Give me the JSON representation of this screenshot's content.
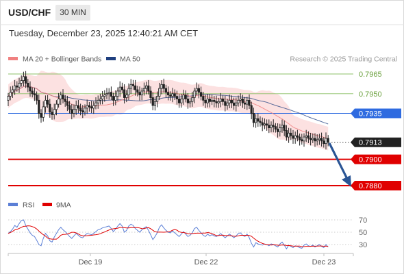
{
  "header": {
    "symbol": "USD/CHF",
    "timeframe": "30 MIN",
    "datetime": "Tuesday, December 23, 2025 12:40:21 AM CET"
  },
  "legend": {
    "ma20_label": "MA 20 + Bollinger Bands",
    "ma50_label": "MA 50",
    "credit": "Research © 2025 Trading Central",
    "rsi_label": "RSI",
    "rsi_ma_label": "9MA"
  },
  "colors": {
    "candle": "#222222",
    "bollinger_fill": "#fbdcdc",
    "ma20": "#f08080",
    "ma50": "#1f3f7f",
    "resistance": "#8cc068",
    "pivot": "#2f6be0",
    "support": "#e00000",
    "current_tag": "#222222",
    "arrow": "#2a5595",
    "rsi": "#5b7fd6",
    "rsi_ma": "#e00000"
  },
  "chart_data": [
    {
      "type": "candlestick",
      "title": "USD/CHF 30 MIN",
      "x_ticks": [
        "Dec 19",
        "Dec 22",
        "Dec 23"
      ],
      "ylim": [
        0.7874,
        0.7972
      ],
      "price_levels": [
        {
          "value": 0.7965,
          "label": "0.7965",
          "kind": "resistance"
        },
        {
          "value": 0.795,
          "label": "0.7950",
          "kind": "resistance"
        },
        {
          "value": 0.7935,
          "label": "0.7935",
          "kind": "pivot"
        },
        {
          "value": 0.7913,
          "label": "0.7913",
          "kind": "current"
        },
        {
          "value": 0.79,
          "label": "0.7900",
          "kind": "support"
        },
        {
          "value": 0.788,
          "label": "0.7880",
          "kind": "support"
        }
      ],
      "close": [
        0.7948,
        0.7951,
        0.7953,
        0.7956,
        0.7955,
        0.7958,
        0.796,
        0.7963,
        0.7958,
        0.7955,
        0.7952,
        0.795,
        0.7949,
        0.7945,
        0.7935,
        0.7932,
        0.794,
        0.7945,
        0.7942,
        0.7936,
        0.7934,
        0.7938,
        0.7942,
        0.7946,
        0.7949,
        0.7946,
        0.7944,
        0.7941,
        0.7938,
        0.7935,
        0.7938,
        0.7941,
        0.7939,
        0.7937,
        0.7936,
        0.7939,
        0.7941,
        0.794,
        0.7939,
        0.7941,
        0.7943,
        0.7945,
        0.7946,
        0.7948,
        0.7949,
        0.795,
        0.7951,
        0.7948,
        0.7945,
        0.7948,
        0.7952,
        0.7955,
        0.7953,
        0.7947,
        0.7949,
        0.7954,
        0.7957,
        0.7956,
        0.7953,
        0.7951,
        0.7949,
        0.7952,
        0.7954,
        0.7956,
        0.7952,
        0.7947,
        0.7941,
        0.7944,
        0.7948,
        0.7954,
        0.7957,
        0.7954,
        0.7951,
        0.7949,
        0.7948,
        0.795,
        0.7948,
        0.7946,
        0.7943,
        0.7946,
        0.7949,
        0.7946,
        0.7943,
        0.7944,
        0.7947,
        0.7952,
        0.7954,
        0.7951,
        0.7948,
        0.7945,
        0.7943,
        0.7946,
        0.7944,
        0.7945,
        0.7944,
        0.7943,
        0.7944,
        0.7946,
        0.7944,
        0.7941,
        0.7943,
        0.7945,
        0.7943,
        0.7941,
        0.7943,
        0.7945,
        0.7946,
        0.7943,
        0.7942,
        0.7945,
        0.7941,
        0.7935,
        0.7928,
        0.7931,
        0.7929,
        0.7928,
        0.7926,
        0.7927,
        0.7926,
        0.7924,
        0.7926,
        0.7925,
        0.7923,
        0.7921,
        0.7924,
        0.7926,
        0.7922,
        0.7917,
        0.792,
        0.7918,
        0.7916,
        0.7918,
        0.7917,
        0.7915,
        0.7914,
        0.7917,
        0.7918,
        0.7916,
        0.7915,
        0.7916,
        0.7914,
        0.7915,
        0.7916,
        0.7914,
        0.7912,
        0.7916,
        0.7913
      ]
    },
    {
      "type": "line",
      "title": "RSI",
      "ylim": [
        20,
        80
      ],
      "y_ticks": [
        70,
        50,
        30
      ],
      "series": [
        {
          "name": "RSI",
          "values": [
            48,
            51,
            55,
            61,
            58,
            64,
            69,
            70,
            61,
            55,
            49,
            45,
            43,
            37,
            30,
            28,
            40,
            48,
            44,
            36,
            34,
            42,
            48,
            54,
            58,
            54,
            51,
            47,
            43,
            40,
            44,
            48,
            45,
            42,
            41,
            45,
            48,
            47,
            46,
            48,
            51,
            54,
            55,
            57,
            58,
            59,
            60,
            56,
            51,
            55,
            60,
            64,
            60,
            50,
            53,
            60,
            63,
            61,
            56,
            53,
            50,
            54,
            57,
            59,
            53,
            46,
            38,
            43,
            49,
            58,
            62,
            57,
            53,
            50,
            49,
            52,
            49,
            46,
            43,
            47,
            51,
            47,
            43,
            45,
            49,
            56,
            58,
            53,
            49,
            45,
            43,
            47,
            44,
            46,
            44,
            43,
            45,
            48,
            44,
            41,
            44,
            47,
            44,
            41,
            44,
            48,
            49,
            45,
            43,
            47,
            41,
            32,
            26,
            33,
            31,
            30,
            29,
            31,
            30,
            28,
            31,
            30,
            28,
            26,
            31,
            34,
            29,
            23,
            29,
            27,
            25,
            28,
            27,
            25,
            24,
            29,
            31,
            28,
            27,
            29,
            26,
            28,
            30,
            27,
            25,
            30,
            26
          ]
        },
        {
          "name": "9MA",
          "values": [
            48,
            49.5,
            51.3,
            53.8,
            54.6,
            56.2,
            57.9,
            59.5,
            59.7,
            60.4,
            60.1,
            59.1,
            57.7,
            55.2,
            52,
            48.8,
            46,
            43.8,
            40.6,
            39.3,
            38.8,
            38.8,
            38.8,
            41.6,
            45.1,
            46.3,
            46.6,
            47.1,
            48.3,
            49.9,
            49.9,
            48.9,
            47.1,
            45.2,
            44.3,
            44.2,
            44.4,
            44.8,
            45,
            45.6,
            46,
            46.6,
            47.6,
            49.1,
            50.5,
            52.1,
            53.6,
            55,
            55.6,
            56.1,
            56.6,
            57.8,
            57.8,
            57.3,
            56.9,
            57,
            57.4,
            57.6,
            57.6,
            57.6,
            56.9,
            55.9,
            55.7,
            57,
            57.4,
            55.8,
            53.1,
            50.8,
            50.1,
            50.2,
            50.1,
            50,
            50.2,
            50.5,
            51.4,
            53.2,
            54.4,
            53.3,
            50.8,
            49.8,
            49.5,
            48.8,
            47.6,
            47.5,
            47.8,
            48.2,
            48.5,
            48.5,
            48.5,
            48.6,
            48.7,
            49.4,
            48.9,
            47.7,
            46.1,
            44.6,
            44.4,
            45.1,
            45.2,
            44.6,
            44.6,
            44.6,
            44.1,
            43.4,
            43.4,
            44.1,
            45,
            45,
            44.9,
            45,
            44.7,
            43.5,
            40.5,
            37.7,
            35.3,
            33.6,
            31.9,
            30.7,
            29.7,
            29.8,
            29.2,
            29.5,
            29.4,
            28.9,
            28.9,
            29.3,
            29.1,
            28.4,
            28.3,
            28,
            27.6,
            27.3,
            27.4,
            27.5,
            26.5,
            26.7,
            27.1,
            27.1,
            27.1,
            27.6,
            27.3,
            27.4,
            27.7,
            27.7,
            27.2,
            27.6,
            27
          ]
        }
      ]
    }
  ]
}
